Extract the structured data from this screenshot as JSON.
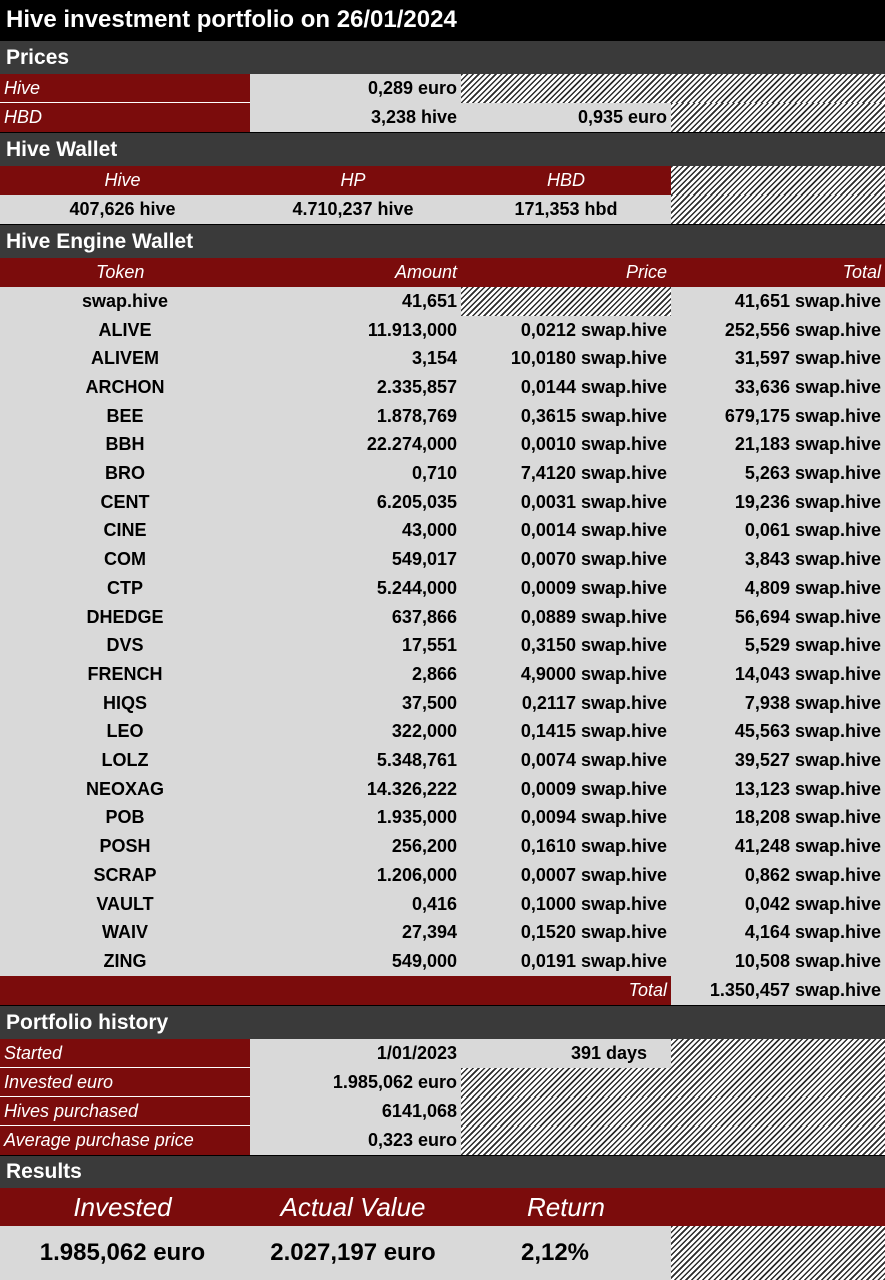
{
  "title": "Hive investment portfolio on 26/01/2024",
  "prices": {
    "section": "Prices",
    "hive_label": "Hive",
    "hive_value": "0,289 euro",
    "hbd_label": "HBD",
    "hbd_hive_value": "3,238 hive",
    "hbd_euro_value": "0,935 euro"
  },
  "hive_wallet": {
    "section": "Hive Wallet",
    "headers": [
      "Hive",
      "HP",
      "HBD"
    ],
    "values": [
      "407,626 hive",
      "4.710,237 hive",
      "171,353 hbd"
    ]
  },
  "engine_wallet": {
    "section": "Hive Engine Wallet",
    "headers": [
      "Token",
      "Amount",
      "Price",
      "Total"
    ],
    "rows": [
      {
        "token": "swap.hive",
        "amount": "41,651",
        "price": "",
        "total": "41,651 swap.hive"
      },
      {
        "token": "ALIVE",
        "amount": "11.913,000",
        "price": "0,0212 swap.hive",
        "total": "252,556 swap.hive"
      },
      {
        "token": "ALIVEM",
        "amount": "3,154",
        "price": "10,0180 swap.hive",
        "total": "31,597 swap.hive"
      },
      {
        "token": "ARCHON",
        "amount": "2.335,857",
        "price": "0,0144 swap.hive",
        "total": "33,636 swap.hive"
      },
      {
        "token": "BEE",
        "amount": "1.878,769",
        "price": "0,3615 swap.hive",
        "total": "679,175 swap.hive"
      },
      {
        "token": "BBH",
        "amount": "22.274,000",
        "price": "0,0010 swap.hive",
        "total": "21,183 swap.hive"
      },
      {
        "token": "BRO",
        "amount": "0,710",
        "price": "7,4120 swap.hive",
        "total": "5,263 swap.hive"
      },
      {
        "token": "CENT",
        "amount": "6.205,035",
        "price": "0,0031 swap.hive",
        "total": "19,236 swap.hive"
      },
      {
        "token": "CINE",
        "amount": "43,000",
        "price": "0,0014 swap.hive",
        "total": "0,061 swap.hive"
      },
      {
        "token": "COM",
        "amount": "549,017",
        "price": "0,0070 swap.hive",
        "total": "3,843 swap.hive"
      },
      {
        "token": "CTP",
        "amount": "5.244,000",
        "price": "0,0009 swap.hive",
        "total": "4,809 swap.hive"
      },
      {
        "token": "DHEDGE",
        "amount": "637,866",
        "price": "0,0889 swap.hive",
        "total": "56,694 swap.hive"
      },
      {
        "token": "DVS",
        "amount": "17,551",
        "price": "0,3150 swap.hive",
        "total": "5,529 swap.hive"
      },
      {
        "token": "FRENCH",
        "amount": "2,866",
        "price": "4,9000 swap.hive",
        "total": "14,043 swap.hive"
      },
      {
        "token": "HIQS",
        "amount": "37,500",
        "price": "0,2117 swap.hive",
        "total": "7,938 swap.hive"
      },
      {
        "token": "LEO",
        "amount": "322,000",
        "price": "0,1415 swap.hive",
        "total": "45,563 swap.hive"
      },
      {
        "token": "LOLZ",
        "amount": "5.348,761",
        "price": "0,0074 swap.hive",
        "total": "39,527 swap.hive"
      },
      {
        "token": "NEOXAG",
        "amount": "14.326,222",
        "price": "0,0009 swap.hive",
        "total": "13,123 swap.hive"
      },
      {
        "token": "POB",
        "amount": "1.935,000",
        "price": "0,0094 swap.hive",
        "total": "18,208 swap.hive"
      },
      {
        "token": "POSH",
        "amount": "256,200",
        "price": "0,1610 swap.hive",
        "total": "41,248 swap.hive"
      },
      {
        "token": "SCRAP",
        "amount": "1.206,000",
        "price": "0,0007 swap.hive",
        "total": "0,862 swap.hive"
      },
      {
        "token": "VAULT",
        "amount": "0,416",
        "price": "0,1000 swap.hive",
        "total": "0,042 swap.hive"
      },
      {
        "token": "WAIV",
        "amount": "27,394",
        "price": "0,1520 swap.hive",
        "total": "4,164 swap.hive"
      },
      {
        "token": "ZING",
        "amount": "549,000",
        "price": "0,0191 swap.hive",
        "total": "10,508 swap.hive"
      }
    ],
    "total_label": "Total",
    "total_value": "1.350,457 swap.hive"
  },
  "history": {
    "section": "Portfolio history",
    "started_label": "Started",
    "started_value": "1/01/2023",
    "started_days": "391 days",
    "invested_label": "Invested euro",
    "invested_value": "1.985,062 euro",
    "purchased_label": "Hives purchased",
    "purchased_value": "6141,068",
    "avg_label": "Average purchase price",
    "avg_value": "0,323 euro"
  },
  "results": {
    "section": "Results",
    "headers": [
      "Invested",
      "Actual Value",
      "Return"
    ],
    "values": [
      "1.985,062 euro",
      "2.027,197 euro",
      "2,12%"
    ]
  },
  "colors": {
    "dark_red": "#7b0c0c",
    "section_grey": "#3a3a3a",
    "cell_grey": "#d9d9d9",
    "title_black": "#000000"
  }
}
